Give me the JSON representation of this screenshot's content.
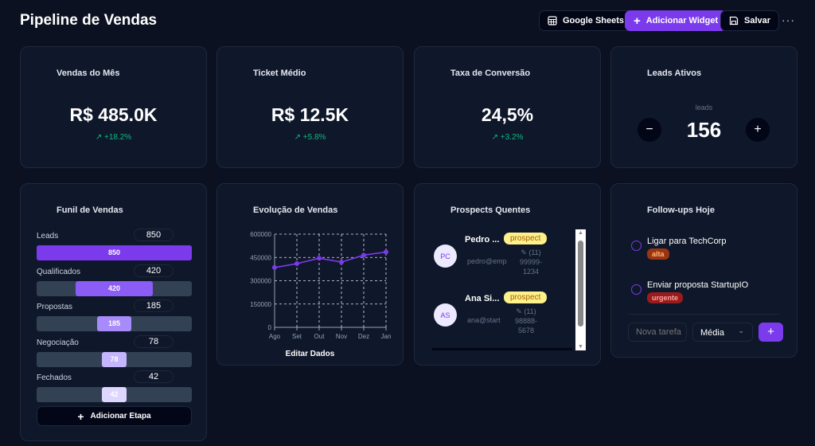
{
  "header": {
    "title": "Pipeline de Vendas",
    "google_sheets": "Google Sheets",
    "add_widget": "Adicionar Widget",
    "save": "Salvar",
    "more": "···"
  },
  "kpis": [
    {
      "title": "Vendas do Mês",
      "value": "R$ 485.0K",
      "delta": "+18.2%"
    },
    {
      "title": "Ticket Médio",
      "value": "R$ 12.5K",
      "delta": "+5.8%"
    },
    {
      "title": "Taxa de Conversão",
      "value": "24,5%",
      "delta": "+3.2%"
    }
  ],
  "leads": {
    "title": "Leads Ativos",
    "caption": "leads",
    "value": "156",
    "minus": "−",
    "plus": "+"
  },
  "funnel": {
    "title": "Funil de Vendas",
    "add_label": "Adicionar Etapa",
    "stages": [
      {
        "label": "Leads",
        "value": "850",
        "color": "#7c3aed"
      },
      {
        "label": "Qualificados",
        "value": "420",
        "color": "#8b5cf6"
      },
      {
        "label": "Propostas",
        "value": "185",
        "color": "#a78bfa"
      },
      {
        "label": "Negociação",
        "value": "78",
        "color": "#c4b5fd"
      },
      {
        "label": "Fechados",
        "value": "42",
        "color": "#ddd6fe"
      }
    ]
  },
  "chart_data": {
    "type": "line",
    "title": "Evolução de Vendas",
    "categories": [
      "Ago",
      "Set",
      "Out",
      "Nov",
      "Dez",
      "Jan"
    ],
    "values": [
      385000,
      410000,
      445000,
      420000,
      465000,
      485000
    ],
    "yticks": [
      "0",
      "150000",
      "300000",
      "450000",
      "600000"
    ],
    "ylim": [
      0,
      600000
    ],
    "grid": true,
    "color": "#7c3aed",
    "footer": "Editar Dados"
  },
  "prospects": {
    "title": "Prospects Quentes",
    "items": [
      {
        "initials": "PC",
        "name": "Pedro ...",
        "badge": "prospect",
        "email": "pedro@emp",
        "phone": "(11) 99999-1234"
      },
      {
        "initials": "AS",
        "name": "Ana Si...",
        "badge": "prospect",
        "email": "ana@start",
        "phone": "(11) 98888-5678"
      }
    ]
  },
  "followups": {
    "title": "Follow-ups Hoje",
    "tasks": [
      {
        "text": "Ligar para TechCorp",
        "priority": "alta",
        "bg": "#9a3412",
        "fg": "#fdba74"
      },
      {
        "text": "Enviar proposta StartupIO",
        "priority": "urgente",
        "bg": "#991b1b",
        "fg": "#fca5a5"
      }
    ],
    "input_placeholder": "Nova tarefa",
    "priority_select": "Média",
    "add": "+"
  }
}
